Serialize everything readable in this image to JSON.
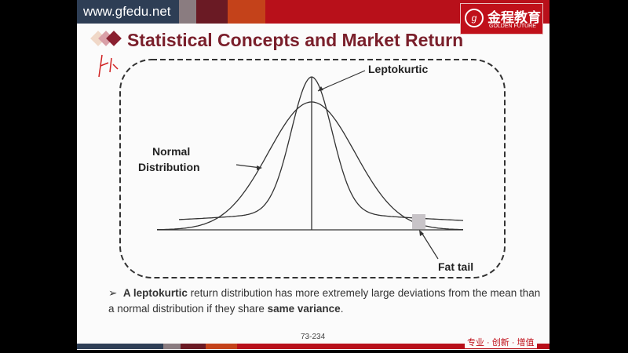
{
  "header": {
    "url": "www.gfedu.net",
    "logo_cn": "金程教育",
    "logo_en": "GOLDEN FUTURE"
  },
  "title": "Statistical Concepts and Market Return",
  "diagram": {
    "label_leptokurtic": "Leptokurtic",
    "label_normal_1": "Normal",
    "label_normal_2": "Distribution",
    "label_fat_tail": "Fat tail"
  },
  "bullet": {
    "bold1": "A leptokurtic",
    "text1": " return distribution has more extremely large deviations from the mean than a normal distribution if they share ",
    "bold2": "same variance",
    "text2": "."
  },
  "footer": {
    "page": "73-234",
    "slogan": "专业 · 创新 · 增值"
  },
  "colors": {
    "title": "#7a1f2b",
    "brand_red": "#c0101a"
  }
}
